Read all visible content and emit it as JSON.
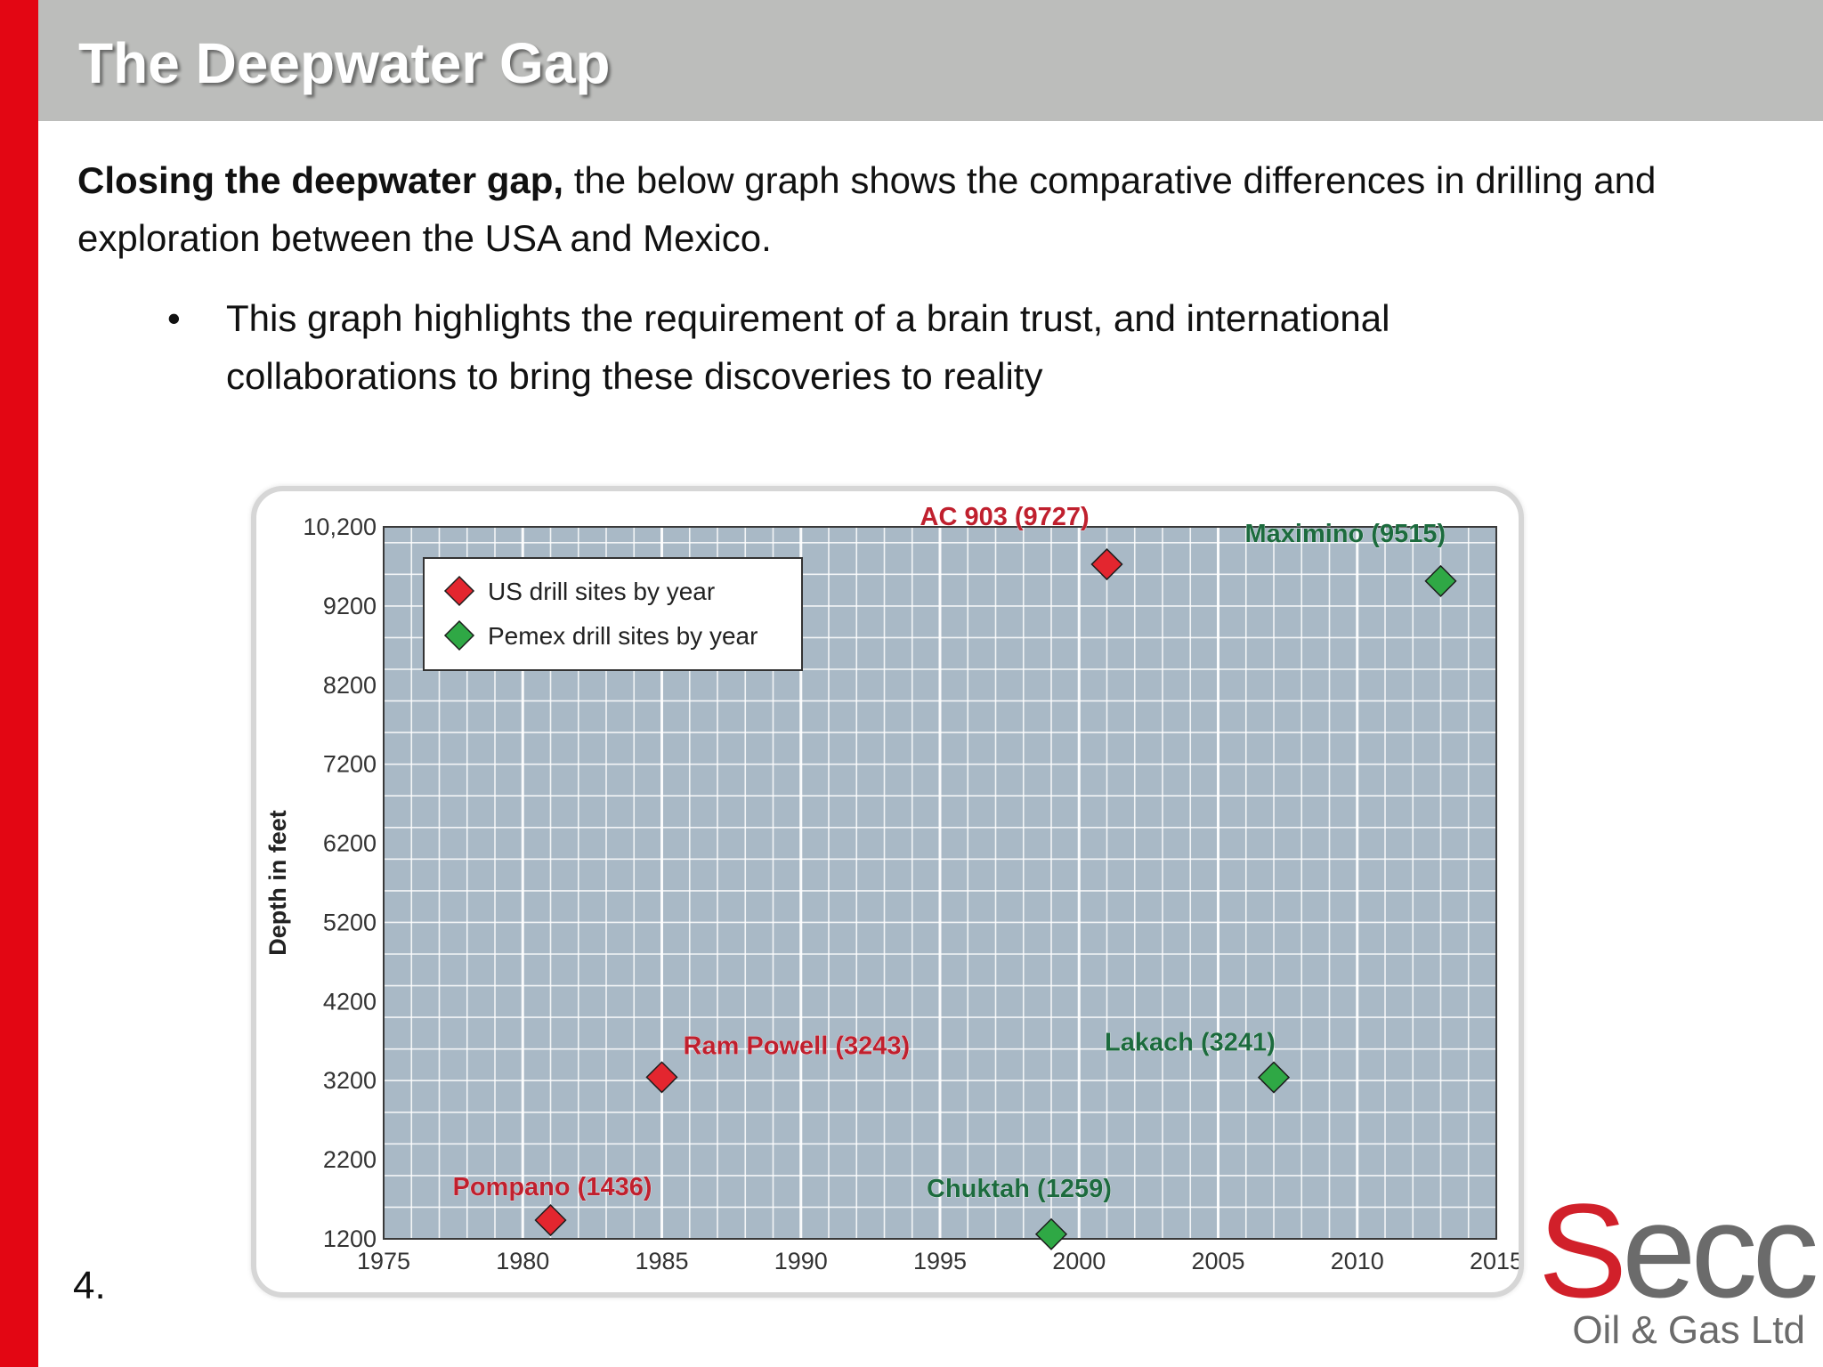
{
  "slide": {
    "title": "The Deepwater Gap",
    "intro_bold": "Closing the deepwater gap,",
    "intro_rest": " the below graph shows the comparative differences in drilling and exploration between the USA and Mexico.",
    "bullet": "This graph highlights the requirement of a brain trust, and international collaborations to bring these discoveries to reality",
    "page_number": "4."
  },
  "logo": {
    "first_letter": "S",
    "rest": "ecc",
    "subtitle": "Oil & Gas Ltd"
  },
  "colors": {
    "accent_red": "#e30613",
    "header_gray": "#bcbdbb",
    "us_series": "#e3262f",
    "pemex_series": "#2fa845",
    "us_label": "#c0202e",
    "pemex_label": "#1c6b3e"
  },
  "chart_data": {
    "type": "scatter",
    "title": "",
    "xlabel": "",
    "ylabel": "Depth in feet",
    "xlim": [
      1975,
      2015
    ],
    "ylim": [
      1200,
      10200
    ],
    "x_ticks": [
      "1975",
      "1980",
      "1985",
      "1990",
      "1995",
      "2000",
      "2005",
      "2010",
      "2015"
    ],
    "y_ticks": [
      "10,200",
      "9200",
      "8200",
      "7200",
      "6200",
      "5200",
      "4200",
      "3200",
      "2200",
      "1200"
    ],
    "grid": true,
    "legend": "top-left",
    "series": [
      {
        "name": "US drill sites by year",
        "color": "#e3262f",
        "points": [
          {
            "x": 1981,
            "y": 1436,
            "label": "Pompano (1436)"
          },
          {
            "x": 1985,
            "y": 3243,
            "label": "Ram Powell (3243)"
          },
          {
            "x": 2001,
            "y": 9727,
            "label": "AC 903 (9727)"
          }
        ]
      },
      {
        "name": "Pemex drill sites by year",
        "color": "#2fa845",
        "points": [
          {
            "x": 1999,
            "y": 1259,
            "label": "Chuktah (1259)"
          },
          {
            "x": 2007,
            "y": 3241,
            "label": "Lakach (3241)"
          },
          {
            "x": 2013,
            "y": 9515,
            "label": "Maximino (9515)"
          }
        ]
      }
    ]
  }
}
